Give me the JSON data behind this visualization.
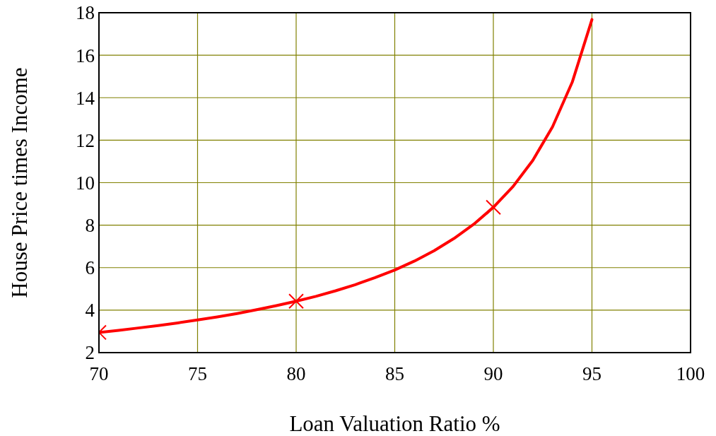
{
  "chart_data": {
    "type": "line",
    "xlabel": "Loan Valuation Ratio %",
    "ylabel": "House Price times Income",
    "xlim": [
      70,
      100
    ],
    "xticks": [
      70,
      75,
      80,
      85,
      90,
      95,
      100
    ],
    "ylim": [
      2,
      18
    ],
    "yticks": [
      2,
      4,
      6,
      8,
      10,
      12,
      14,
      16,
      18
    ],
    "grid": true,
    "series": [
      {
        "color": "#ff0000",
        "x": [
          70,
          71,
          72,
          73,
          74,
          75,
          76,
          77,
          78,
          79,
          80,
          81,
          82,
          83,
          84,
          85,
          86,
          87,
          88,
          89,
          90,
          91,
          92,
          93,
          94,
          95
        ],
        "values": [
          2.95,
          3.05,
          3.16,
          3.27,
          3.4,
          3.54,
          3.68,
          3.84,
          4.02,
          4.21,
          4.42,
          4.65,
          4.91,
          5.2,
          5.53,
          5.89,
          6.31,
          6.8,
          7.37,
          8.04,
          8.84,
          9.82,
          11.05,
          12.63,
          14.73,
          17.68
        ]
      },
      {
        "type": "scatter",
        "color": "#ff0000",
        "marker": "cross",
        "x": [
          70,
          80,
          90
        ],
        "values": [
          2.95,
          4.42,
          8.84
        ]
      }
    ]
  }
}
